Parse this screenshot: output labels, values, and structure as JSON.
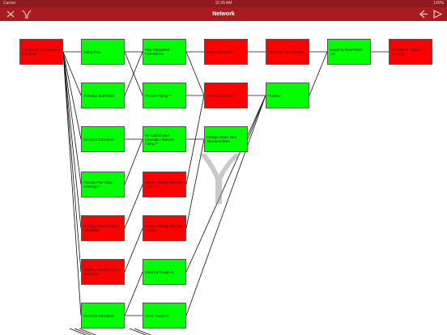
{
  "status_bar": {
    "carrier": "Carrier",
    "time": "11:39 AM",
    "battery": "100%"
  },
  "nav": {
    "title": "Network",
    "left_icons": [
      "close-icon",
      "logo-icon"
    ],
    "right_icons": [
      "back-arrow-icon",
      "forward-arrow-icon"
    ]
  },
  "colors": {
    "nav_background": "#a81c20",
    "status_background": "#8e1a1d",
    "task_complete": "#00ff00",
    "task_overdue": "#ff0000"
  },
  "tasks": [
    {
      "id": "c0r0",
      "label": "Foundation Excavation & Sub Base",
      "status": "red"
    },
    {
      "id": "c1r0",
      "label": "Safety Plan",
      "status": "green"
    },
    {
      "id": "c1r1",
      "label": "Schedule Submittals",
      "status": "green"
    },
    {
      "id": "c1r2",
      "label": "Structure Submittals",
      "status": "green"
    },
    {
      "id": "c1r3",
      "label": "Process Plan Shop Drawings *",
      "status": "green"
    },
    {
      "id": "c1r4",
      "label": "Welding Machine Line 1 Submittals",
      "status": "red"
    },
    {
      "id": "c1r5",
      "label": "Welding Machine Line 2 Submittals",
      "status": "red"
    },
    {
      "id": "c1r6",
      "label": "Electrical Submittals",
      "status": "green"
    },
    {
      "id": "c2r0",
      "label": "Pour Equipment Foundations",
      "status": "green"
    },
    {
      "id": "c2r1",
      "label": "Process Piping **",
      "status": "green"
    },
    {
      "id": "c2r2",
      "label": "Re-Submit Steel Drawings / Release Piping **",
      "status": "green"
    },
    {
      "id": "c2r3",
      "label": "Deliver Welding Machine - Line 1",
      "status": "red"
    },
    {
      "id": "c2r4",
      "label": "Deliver Welding Machine - Line 2",
      "status": "red"
    },
    {
      "id": "c2r5",
      "label": "Electrical Rough-In",
      "status": "green"
    },
    {
      "id": "c2r6",
      "label": "HVAC Rough-In",
      "status": "green"
    },
    {
      "id": "c3r0",
      "label": "Install Machine #1",
      "status": "red"
    },
    {
      "id": "c3r1",
      "label": "Install Machine #2",
      "status": "red"
    },
    {
      "id": "c3r2",
      "label": "Change Order: New Structural Work",
      "status": "green"
    },
    {
      "id": "c4r0",
      "label": "Electrical Trim & Startup",
      "status": "red"
    },
    {
      "id": "c4r1",
      "label": "Finishes",
      "status": "green"
    },
    {
      "id": "c5r0",
      "label": "Inspect & Final Punch List",
      "status": "green"
    },
    {
      "id": "c6r0",
      "label": "Occupation / Owner Turnover",
      "status": "red"
    }
  ]
}
